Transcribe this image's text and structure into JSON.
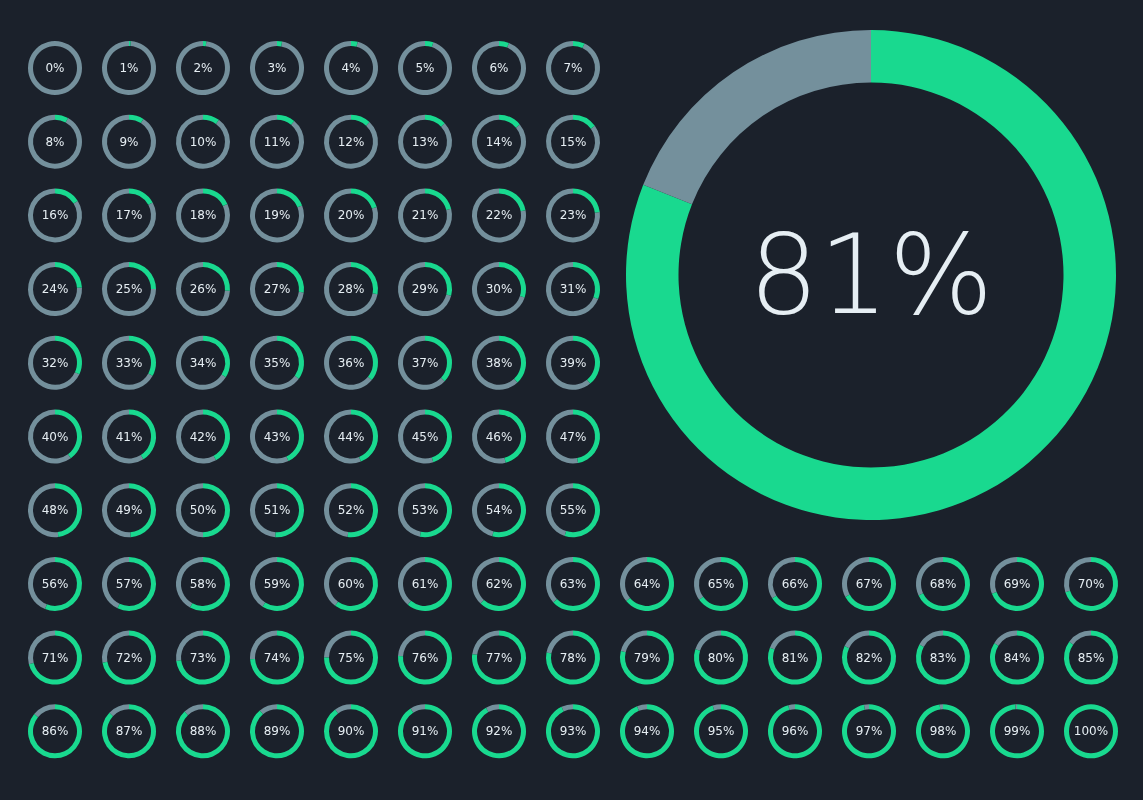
{
  "chart_data": [
    {
      "type": "other",
      "values": [
        0,
        1,
        2,
        3,
        4,
        5,
        6,
        7,
        8,
        9,
        10,
        11,
        12,
        13,
        14,
        15,
        16,
        17,
        18,
        19,
        20,
        21,
        22,
        23,
        24,
        25,
        26,
        27,
        28,
        29,
        30,
        31,
        32,
        33,
        34,
        35,
        36,
        37,
        38,
        39,
        40,
        41,
        42,
        43,
        44,
        45,
        46,
        47,
        48,
        49,
        50,
        51,
        52,
        53,
        54,
        55,
        56,
        57,
        58,
        59,
        60,
        61,
        62,
        63,
        64,
        65,
        66,
        67,
        68,
        69,
        70,
        71,
        72,
        73,
        74,
        75,
        76,
        77,
        78,
        79,
        80,
        81,
        82,
        83,
        84,
        85,
        86,
        87,
        88,
        89,
        90,
        91,
        92,
        93,
        94,
        95,
        96,
        97,
        98,
        99,
        100
      ],
      "value_labels": [
        "0%",
        "1%",
        "2%",
        "3%",
        "4%",
        "5%",
        "6%",
        "7%",
        "8%",
        "9%",
        "10%",
        "11%",
        "12%",
        "13%",
        "14%",
        "15%",
        "16%",
        "17%",
        "18%",
        "19%",
        "20%",
        "21%",
        "22%",
        "23%",
        "24%",
        "25%",
        "26%",
        "27%",
        "28%",
        "29%",
        "30%",
        "31%",
        "32%",
        "33%",
        "34%",
        "35%",
        "36%",
        "37%",
        "38%",
        "39%",
        "40%",
        "41%",
        "42%",
        "43%",
        "44%",
        "45%",
        "46%",
        "47%",
        "48%",
        "49%",
        "50%",
        "51%",
        "52%",
        "53%",
        "54%",
        "55%",
        "56%",
        "57%",
        "58%",
        "59%",
        "60%",
        "61%",
        "62%",
        "63%",
        "64%",
        "65%",
        "66%",
        "67%",
        "68%",
        "69%",
        "70%",
        "71%",
        "72%",
        "73%",
        "74%",
        "75%",
        "76%",
        "77%",
        "78%",
        "79%",
        "80%",
        "81%",
        "82%",
        "83%",
        "84%",
        "85%",
        "86%",
        "87%",
        "88%",
        "89%",
        "90%",
        "91%",
        "92%",
        "93%",
        "94%",
        "95%",
        "96%",
        "97%",
        "98%",
        "99%",
        "100%"
      ],
      "color": "#19d98f"
    },
    {
      "type": "donut",
      "categories": [
        null,
        null
      ],
      "values": [
        81,
        19
      ],
      "colors": [
        "#19d98f",
        "#74909c"
      ],
      "annotations": [
        "81%"
      ]
    }
  ]
}
